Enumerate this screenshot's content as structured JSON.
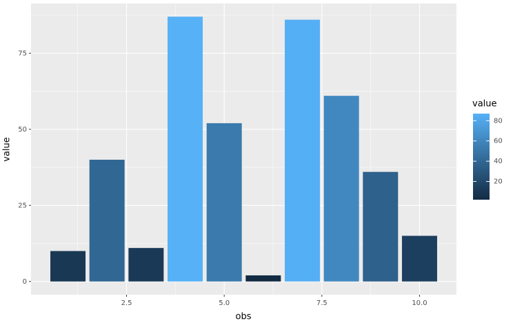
{
  "chart_data": {
    "type": "bar",
    "x_label": "obs",
    "y_label": "value",
    "x": [
      1,
      2,
      3,
      4,
      5,
      6,
      7,
      8,
      9,
      10
    ],
    "values": [
      10,
      40,
      11,
      87,
      52,
      2,
      86,
      61,
      36,
      15
    ],
    "color_low": "#132B43",
    "color_high": "#56B1F7",
    "xlim": [
      0.055,
      10.945
    ],
    "xticks": [
      2.5,
      {
        "value": 5,
        "label": "5.0"
      },
      7.5,
      {
        "value": 10,
        "label": "10.0"
      }
    ],
    "ylim": [
      -4.35,
      91.35
    ],
    "yticks": [
      0,
      25,
      50,
      75
    ],
    "grid": true,
    "legend_title": "value",
    "legend_ticks": [
      20,
      40,
      60,
      80
    ]
  }
}
